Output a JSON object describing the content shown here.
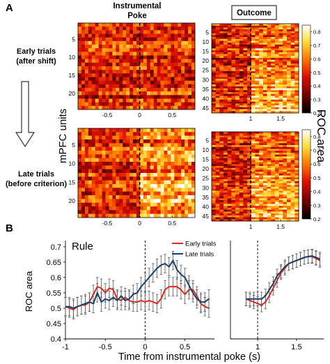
{
  "panel_a": {
    "label": "A",
    "header_poke": "Instrumental\nPoke",
    "header_outcome": "Outcome",
    "row_early": "Early trials\n(after shift)",
    "row_late": "Late trials\n(before criterion)",
    "ylabel": "mPFC units",
    "colorbar_label": "ROC area"
  },
  "panel_b": {
    "label": "B",
    "title": "Rule"
  },
  "colors": {
    "early": "#e0261e",
    "late": "#1c3f66",
    "heat_low": "#000000",
    "heat_mid": "#ff3300",
    "heat_high": "#ffffff"
  },
  "chart_data": [
    {
      "type": "heatmap",
      "name": "early-poke",
      "x_ticks": [
        -0.5,
        0,
        0.5
      ],
      "x_range": [
        -0.95,
        0.85
      ],
      "y_ticks": [
        5,
        10,
        15,
        20
      ],
      "rows": 24,
      "cols": 34,
      "onset_line": 0,
      "brighter_after_onset": false
    },
    {
      "type": "heatmap",
      "name": "early-outcome",
      "x_ticks": [
        1,
        1.5
      ],
      "x_range": [
        0.35,
        1.8
      ],
      "y_ticks": [
        5,
        10,
        15,
        20,
        25,
        30,
        35,
        40,
        45
      ],
      "rows": 47,
      "cols": 22,
      "onset_line": 1,
      "brighter_after_onset": true
    },
    {
      "type": "heatmap",
      "name": "late-poke",
      "x_ticks": [
        -0.5,
        0,
        0.5
      ],
      "x_range": [
        -0.95,
        0.85
      ],
      "y_ticks": [
        5,
        10,
        15,
        20
      ],
      "rows": 24,
      "cols": 34,
      "onset_line": 0,
      "brighter_after_onset": true
    },
    {
      "type": "heatmap",
      "name": "late-outcome",
      "x_ticks": [
        1,
        1.5
      ],
      "x_range": [
        0.35,
        1.8
      ],
      "y_ticks": [
        5,
        10,
        15,
        20,
        25,
        30,
        35,
        40,
        45
      ],
      "rows": 47,
      "cols": 22,
      "onset_line": 1,
      "brighter_after_onset": true
    },
    {
      "type": "colorbar",
      "ticks": [
        0.2,
        0.3,
        0.4,
        0.5,
        0.6,
        0.7,
        0.8
      ],
      "range": [
        0.2,
        0.85
      ]
    },
    {
      "type": "line",
      "xlabel": "Time from instrumental poke (s)",
      "ylabel": "ROC area",
      "ylim": [
        0.4,
        0.72
      ],
      "y_ticks": [
        0.4,
        0.45,
        0.5,
        0.55,
        0.6,
        0.65,
        0.7
      ],
      "axes": [
        {
          "xlim": [
            -1.0,
            0.87
          ],
          "x_ticks": [
            -1,
            -0.5,
            0,
            0.5
          ],
          "vline": 0
        },
        {
          "xlim": [
            0.65,
            1.85
          ],
          "x_ticks": [
            1,
            1.5
          ],
          "vline": 1
        }
      ],
      "series": [
        {
          "name": "Early trials",
          "segments": [
            {
              "x": [
                -1.0,
                -0.95,
                -0.9,
                -0.85,
                -0.8,
                -0.75,
                -0.7,
                -0.65,
                -0.6,
                -0.55,
                -0.5,
                -0.45,
                -0.4,
                -0.35,
                -0.3,
                -0.25,
                -0.2,
                -0.15,
                -0.1,
                -0.05,
                0,
                0.05,
                0.1,
                0.15,
                0.2,
                0.25,
                0.3,
                0.35,
                0.4,
                0.45,
                0.5,
                0.55,
                0.6,
                0.65,
                0.7,
                0.75,
                0.8
              ],
              "y": [
                0.505,
                0.5,
                0.495,
                0.505,
                0.51,
                0.51,
                0.52,
                0.545,
                0.57,
                0.565,
                0.55,
                0.565,
                0.56,
                0.53,
                0.525,
                0.535,
                0.525,
                0.52,
                0.52,
                0.525,
                0.52,
                0.525,
                0.52,
                0.515,
                0.53,
                0.56,
                0.57,
                0.57,
                0.57,
                0.56,
                0.545,
                0.56,
                0.56,
                0.54,
                0.515,
                0.505,
                0.5
              ],
              "err": 0.03
            },
            {
              "x": [
                0.85,
                0.9,
                0.95,
                1.0,
                1.05,
                1.1,
                1.15,
                1.2,
                1.25,
                1.3,
                1.35,
                1.4,
                1.45,
                1.5,
                1.55,
                1.6,
                1.65,
                1.7,
                1.75,
                1.8
              ],
              "y": [
                0.53,
                0.525,
                0.52,
                0.515,
                0.51,
                0.52,
                0.54,
                0.565,
                0.59,
                0.615,
                0.63,
                0.645,
                0.65,
                0.655,
                0.66,
                0.665,
                0.668,
                0.668,
                0.662,
                0.655
              ],
              "err": 0.022
            }
          ]
        },
        {
          "name": "Late trials",
          "segments": [
            {
              "x": [
                -1.0,
                -0.95,
                -0.9,
                -0.85,
                -0.8,
                -0.75,
                -0.7,
                -0.65,
                -0.6,
                -0.55,
                -0.5,
                -0.45,
                -0.4,
                -0.35,
                -0.3,
                -0.25,
                -0.2,
                -0.15,
                -0.1,
                -0.05,
                0,
                0.05,
                0.1,
                0.15,
                0.2,
                0.25,
                0.3,
                0.35,
                0.4,
                0.45,
                0.5,
                0.55,
                0.6,
                0.65,
                0.7,
                0.75,
                0.8
              ],
              "y": [
                0.505,
                0.505,
                0.5,
                0.505,
                0.51,
                0.515,
                0.52,
                0.515,
                0.55,
                0.52,
                0.53,
                0.525,
                0.535,
                0.525,
                0.54,
                0.525,
                0.53,
                0.545,
                0.55,
                0.57,
                0.585,
                0.6,
                0.615,
                0.63,
                0.64,
                0.645,
                0.635,
                0.655,
                0.625,
                0.61,
                0.6,
                0.575,
                0.55,
                0.53,
                0.52,
                0.52,
                0.53
              ],
              "err": 0.03
            },
            {
              "x": [
                0.85,
                0.9,
                0.95,
                1.0,
                1.05,
                1.1,
                1.15,
                1.2,
                1.25,
                1.3,
                1.35,
                1.4,
                1.45,
                1.5,
                1.55,
                1.6,
                1.65,
                1.7,
                1.75,
                1.8
              ],
              "y": [
                0.53,
                0.53,
                0.53,
                0.53,
                0.53,
                0.54,
                0.56,
                0.58,
                0.605,
                0.62,
                0.635,
                0.645,
                0.65,
                0.655,
                0.66,
                0.665,
                0.668,
                0.67,
                0.665,
                0.66
              ],
              "err": 0.022
            }
          ]
        }
      ]
    }
  ]
}
